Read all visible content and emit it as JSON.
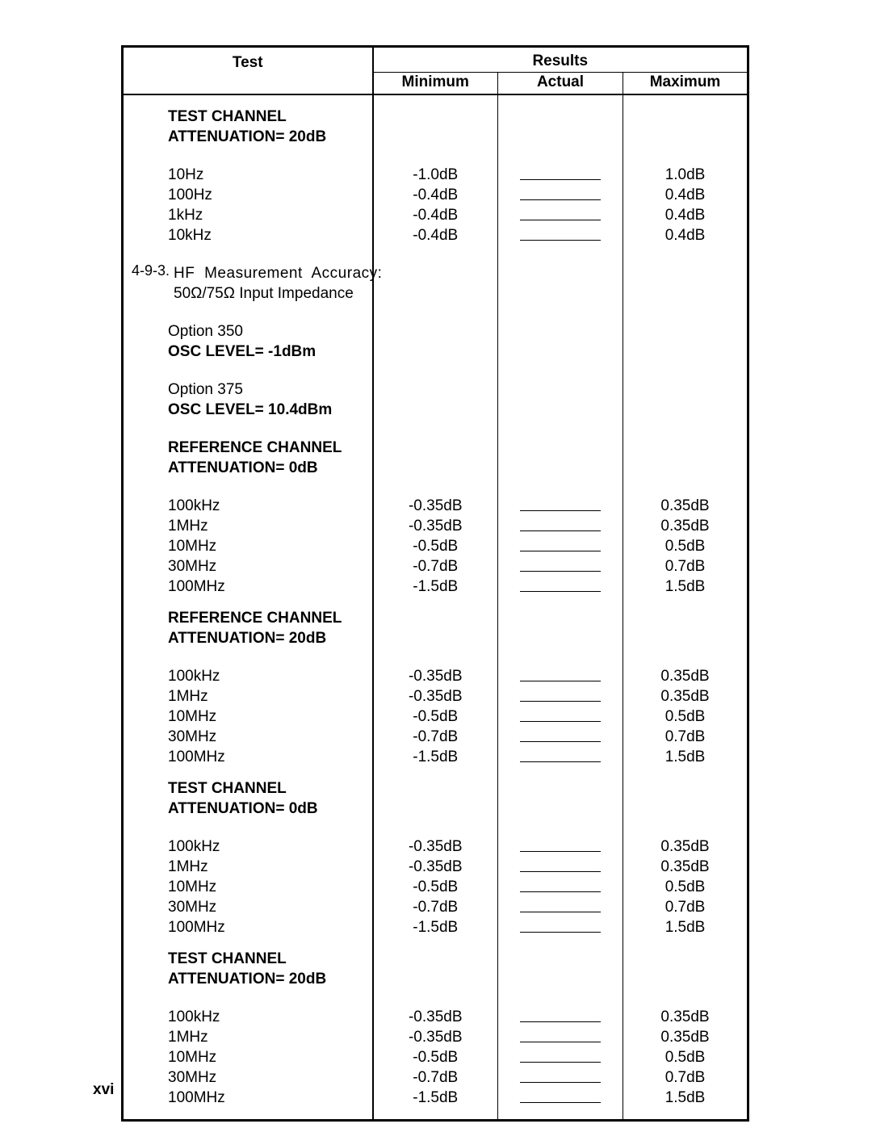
{
  "header": {
    "test": "Test",
    "results": "Results",
    "minimum": "Minimum",
    "actual": "Actual",
    "maximum": "Maximum"
  },
  "page_number": "xvi",
  "sections": {
    "s1": {
      "l1": "TEST CHANNEL",
      "l2": "ATTENUATION= 20dB"
    },
    "s1rows": {
      "r1": {
        "f": "10Hz",
        "min": "-1.0dB",
        "max": "1.0dB"
      },
      "r2": {
        "f": "100Hz",
        "min": "-0.4dB",
        "max": "0.4dB"
      },
      "r3": {
        "f": "1kHz",
        "min": "-0.4dB",
        "max": "0.4dB"
      },
      "r4": {
        "f": "10kHz",
        "min": "-0.4dB",
        "max": "0.4dB"
      }
    },
    "num": "4-9-3.",
    "numtxt1": "HF Measurement Accuracy:",
    "numtxt2": "50Ω/75Ω Input Impedance",
    "opt350a": "Option 350",
    "opt350b": "OSC LEVEL= -1dBm",
    "opt375a": "Option 375",
    "opt375b": "OSC LEVEL= 10.4dBm",
    "s2": {
      "l1": "REFERENCE CHANNEL",
      "l2": "ATTENUATION= 0dB"
    },
    "s2rows": {
      "r1": {
        "f": "100kHz",
        "min": "-0.35dB",
        "max": "0.35dB"
      },
      "r2": {
        "f": "1MHz",
        "min": "-0.35dB",
        "max": "0.35dB"
      },
      "r3": {
        "f": "10MHz",
        "min": "-0.5dB",
        "max": "0.5dB"
      },
      "r4": {
        "f": "30MHz",
        "min": "-0.7dB",
        "max": "0.7dB"
      },
      "r5": {
        "f": "100MHz",
        "min": "-1.5dB",
        "max": "1.5dB"
      }
    },
    "s3": {
      "l1": "REFERENCE CHANNEL",
      "l2": "ATTENUATION= 20dB"
    },
    "s3rows": {
      "r1": {
        "f": "100kHz",
        "min": "-0.35dB",
        "max": "0.35dB"
      },
      "r2": {
        "f": "1MHz",
        "min": "-0.35dB",
        "max": "0.35dB"
      },
      "r3": {
        "f": "10MHz",
        "min": "-0.5dB",
        "max": "0.5dB"
      },
      "r4": {
        "f": "30MHz",
        "min": "-0.7dB",
        "max": "0.7dB"
      },
      "r5": {
        "f": "100MHz",
        "min": "-1.5dB",
        "max": "1.5dB"
      }
    },
    "s4": {
      "l1": "TEST CHANNEL",
      "l2": "ATTENUATION= 0dB"
    },
    "s4rows": {
      "r1": {
        "f": "100kHz",
        "min": "-0.35dB",
        "max": "0.35dB"
      },
      "r2": {
        "f": "1MHz",
        "min": "-0.35dB",
        "max": "0.35dB"
      },
      "r3": {
        "f": "10MHz",
        "min": "-0.5dB",
        "max": "0.5dB"
      },
      "r4": {
        "f": "30MHz",
        "min": "-0.7dB",
        "max": "0.7dB"
      },
      "r5": {
        "f": "100MHz",
        "min": "-1.5dB",
        "max": "1.5dB"
      }
    },
    "s5": {
      "l1": "TEST CHANNEL",
      "l2": "ATTENUATION= 20dB"
    },
    "s5rows": {
      "r1": {
        "f": "100kHz",
        "min": "-0.35dB",
        "max": "0.35dB"
      },
      "r2": {
        "f": "1MHz",
        "min": "-0.35dB",
        "max": "0.35dB"
      },
      "r3": {
        "f": "10MHz",
        "min": "-0.5dB",
        "max": "0.5dB"
      },
      "r4": {
        "f": "30MHz",
        "min": "-0.7dB",
        "max": "0.7dB"
      },
      "r5": {
        "f": "100MHz",
        "min": "-1.5dB",
        "max": "1.5dB"
      }
    }
  }
}
